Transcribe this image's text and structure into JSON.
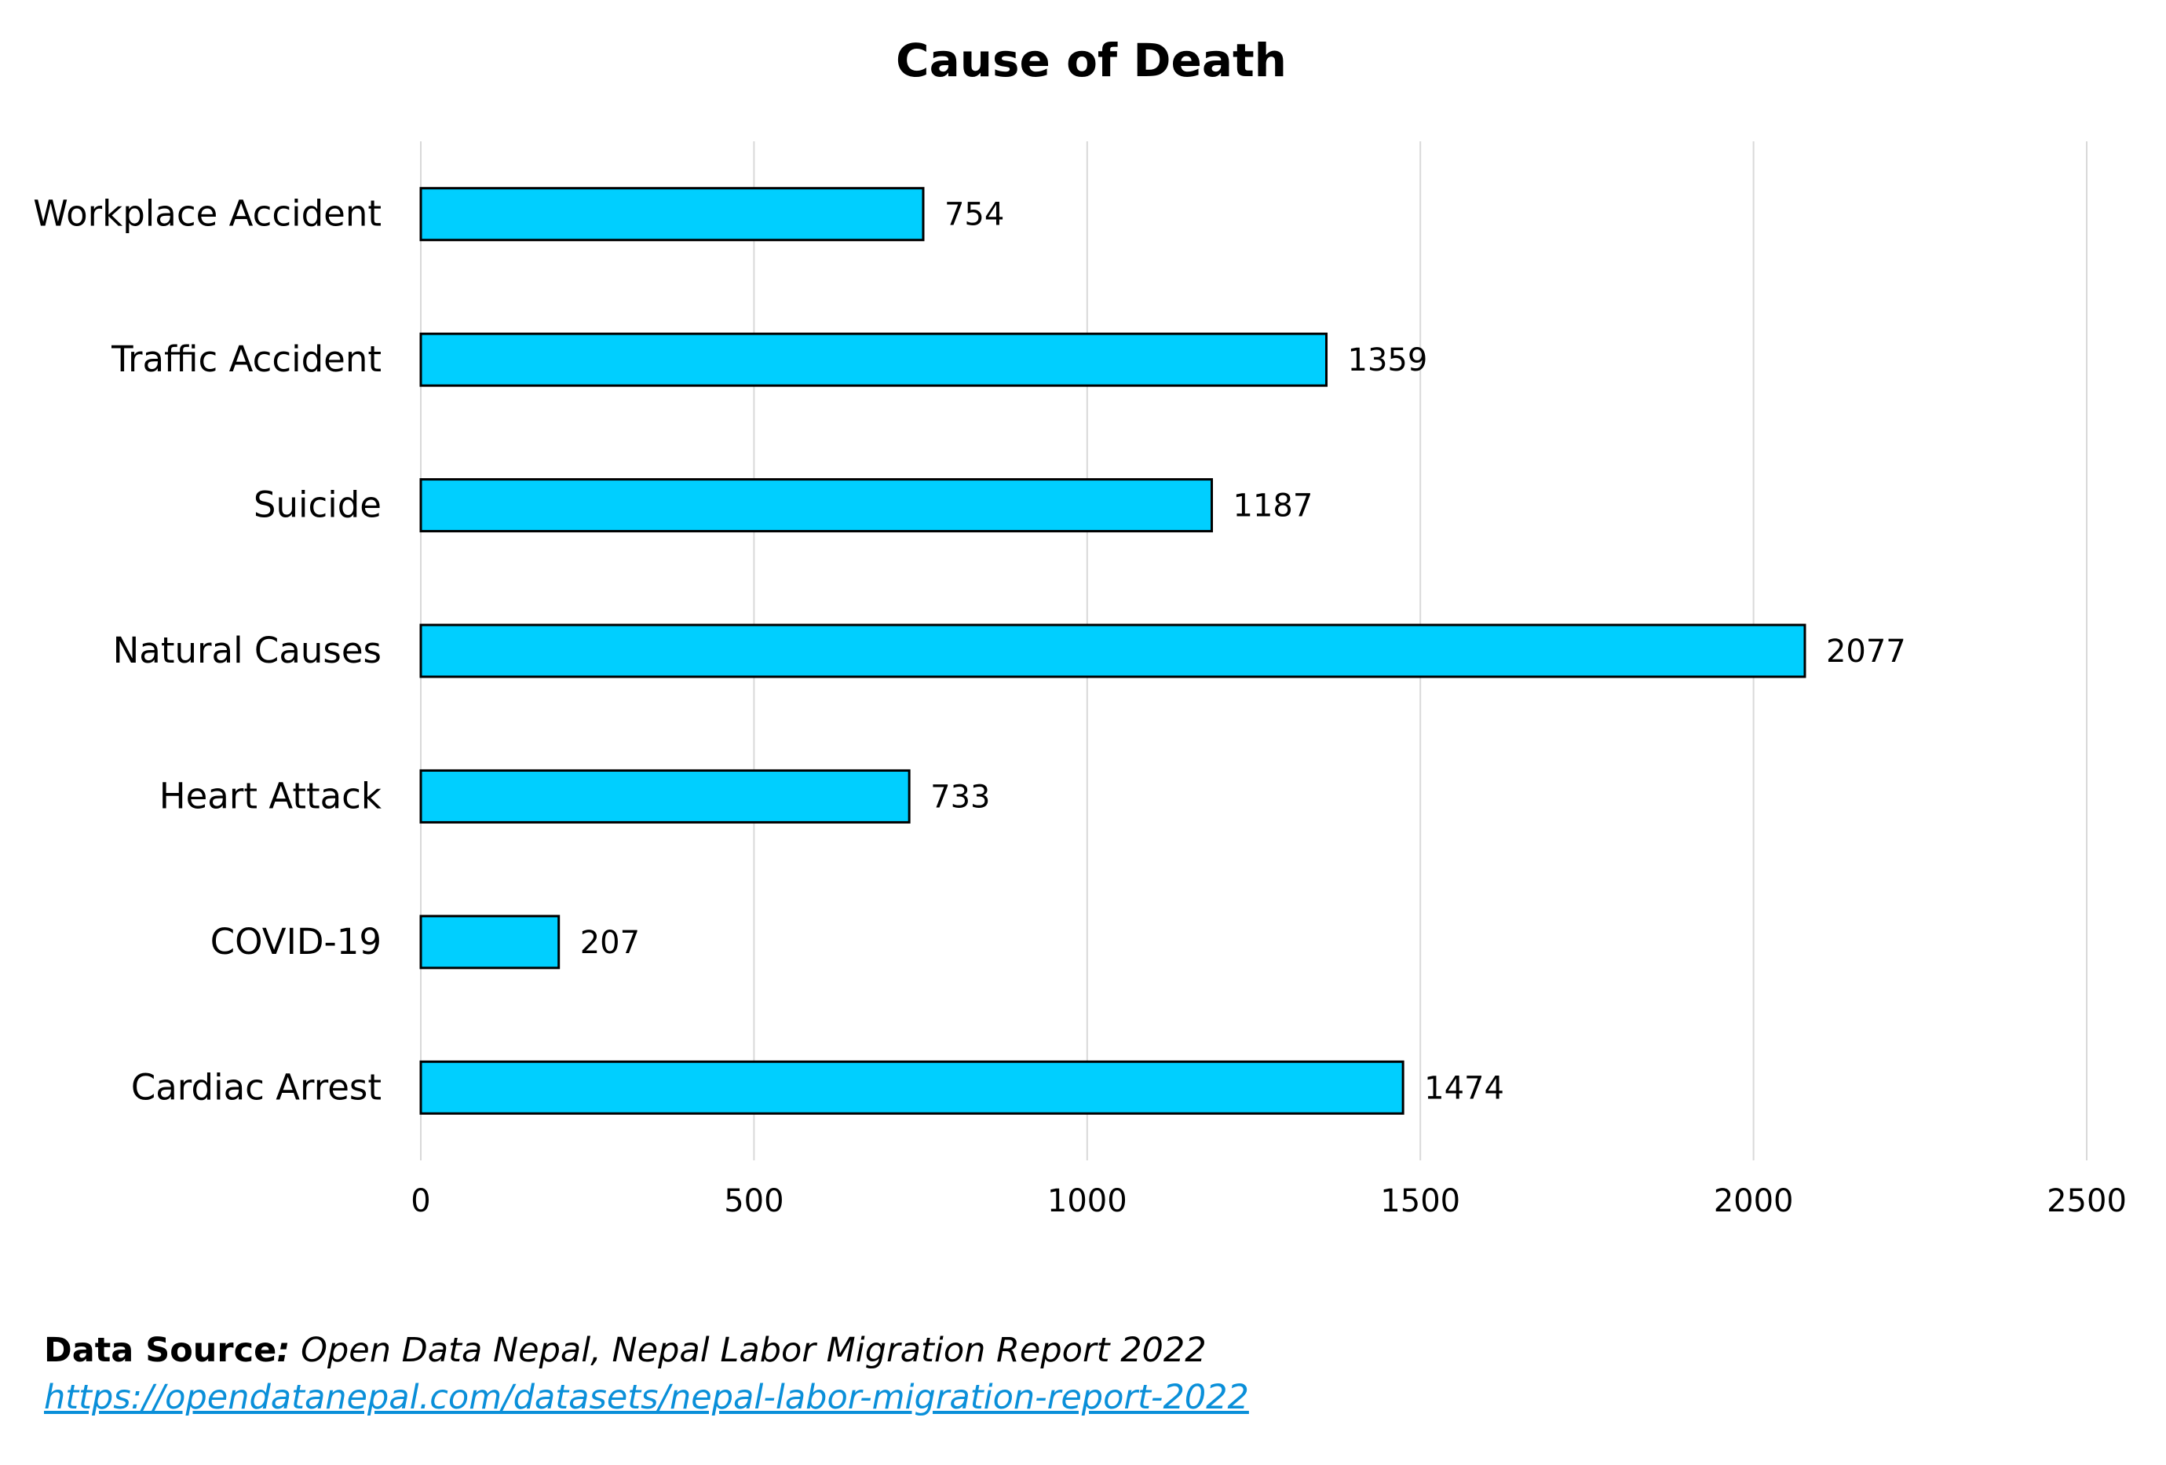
{
  "chart_data": {
    "type": "bar",
    "orientation": "horizontal",
    "title": "Cause of Death",
    "categories": [
      "Workplace Accident",
      "Traffic Accident",
      "Suicide",
      "Natural Causes",
      "Heart Attack",
      "COVID-19",
      "Cardiac Arrest"
    ],
    "values": [
      754,
      1359,
      1187,
      2077,
      733,
      207,
      1474
    ],
    "data_labels": [
      "754",
      "1359",
      "1187",
      "2077",
      "733",
      "207",
      "1474"
    ],
    "xlim": [
      0,
      2500
    ],
    "xticks": [
      0,
      500,
      1000,
      1500,
      2000,
      2500
    ],
    "xtick_labels": [
      "0",
      "500",
      "1000",
      "1500",
      "2000",
      "2500"
    ],
    "xlabel": "",
    "ylabel": "",
    "grid": "vertical",
    "legend": "none",
    "bar_color": "#00cfff",
    "bar_edge_color": "#000000",
    "grid_color": "#d9d9d9"
  },
  "source": {
    "label": "Data Source",
    "colon": ":",
    "text": " Open Data Nepal, Nepal Labor Migration Report 2022",
    "link": "https://opendatanepal.com/datasets/nepal-labor-migration-report-2022",
    "link_color": "#0a8fd9"
  }
}
